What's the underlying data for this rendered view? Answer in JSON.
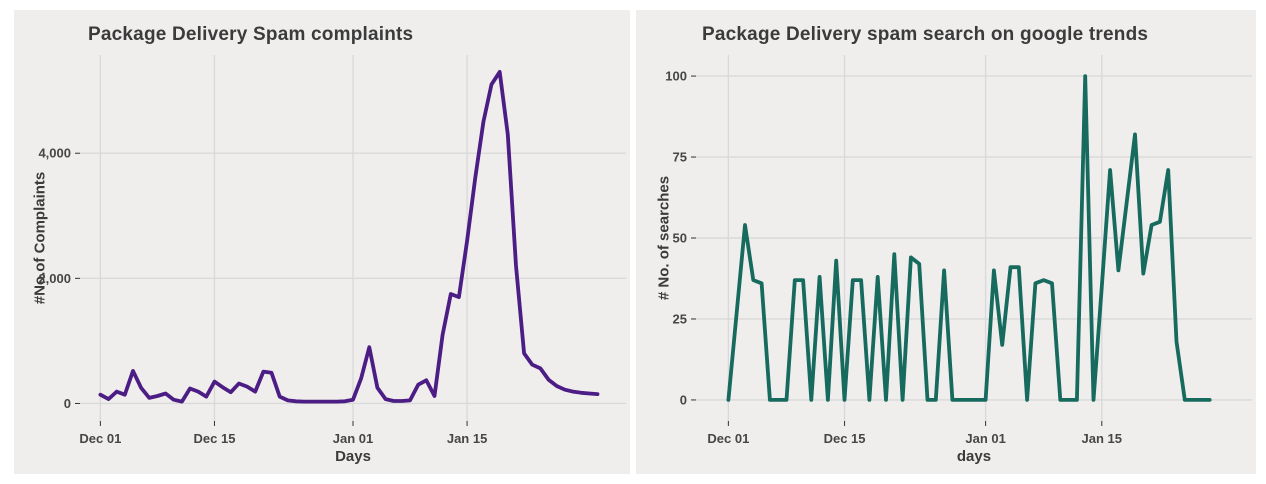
{
  "figure": {
    "background": "#ffffff",
    "panel_background": "#efeeed",
    "gridline_color": "#d9d9d9",
    "tick_color": "#333333",
    "tick_label_color": "#464646",
    "title_color": "#3b3b3b"
  },
  "chart_data": [
    {
      "type": "line",
      "title": "Package Delivery Spam complaints",
      "xlabel": "Days",
      "ylabel": "#No.of Complaints",
      "line_color": "#4c1d84",
      "grid": "major",
      "legend_position": "none",
      "x_tick_labels": [
        "Dec 01",
        "Dec 15",
        "Jan 01",
        "Jan 15"
      ],
      "x_tick_days": [
        0,
        14,
        31,
        45
      ],
      "y_tick_labels": [
        "0",
        "2,000",
        "4,000"
      ],
      "y_tick_values": [
        0,
        2000,
        4000
      ],
      "xlim": [
        -2.5,
        64.5
      ],
      "ylim": [
        -280,
        5570
      ],
      "x_dates": [
        "Dec 01",
        "Dec 02",
        "Dec 03",
        "Dec 04",
        "Dec 05",
        "Dec 06",
        "Dec 07",
        "Dec 08",
        "Dec 09",
        "Dec 10",
        "Dec 11",
        "Dec 12",
        "Dec 13",
        "Dec 14",
        "Dec 15",
        "Dec 16",
        "Dec 17",
        "Dec 18",
        "Dec 19",
        "Dec 20",
        "Dec 21",
        "Dec 22",
        "Dec 23",
        "Dec 24",
        "Dec 25",
        "Dec 26",
        "Dec 27",
        "Dec 28",
        "Dec 29",
        "Dec 30",
        "Dec 31",
        "Jan 01",
        "Jan 02",
        "Jan 03",
        "Jan 04",
        "Jan 05",
        "Jan 06",
        "Jan 07",
        "Jan 08",
        "Jan 09",
        "Jan 10",
        "Jan 11",
        "Jan 12",
        "Jan 13",
        "Jan 14",
        "Jan 15",
        "Jan 16",
        "Jan 17",
        "Jan 18",
        "Jan 19",
        "Jan 20",
        "Jan 21",
        "Jan 22",
        "Jan 23",
        "Jan 24",
        "Jan 25",
        "Jan 26",
        "Jan 27",
        "Jan 28",
        "Jan 29",
        "Jan 30",
        "Jan 31"
      ],
      "values": [
        140,
        70,
        190,
        140,
        520,
        250,
        90,
        120,
        160,
        60,
        30,
        240,
        190,
        110,
        350,
        260,
        180,
        320,
        270,
        190,
        510,
        490,
        110,
        50,
        35,
        30,
        30,
        30,
        30,
        30,
        35,
        60,
        400,
        900,
        250,
        70,
        40,
        40,
        50,
        300,
        370,
        120,
        1100,
        1750,
        1700,
        2600,
        3600,
        4500,
        5100,
        5300,
        4300,
        2200,
        800,
        620,
        560,
        380,
        280,
        220,
        190,
        170,
        160,
        150
      ]
    },
    {
      "type": "line",
      "title": "Package Delivery spam search on google trends",
      "xlabel": "days",
      "ylabel": "# No. of searches",
      "line_color": "#176a5e",
      "grid": "major",
      "legend_position": "none",
      "x_tick_labels": [
        "Dec 01",
        "Dec 15",
        "Jan 01",
        "Jan 15"
      ],
      "x_tick_days": [
        0,
        14,
        31,
        45
      ],
      "y_tick_labels": [
        "0",
        "25",
        "50",
        "75",
        "100"
      ],
      "y_tick_values": [
        0,
        25,
        50,
        75,
        100
      ],
      "xlim": [
        -3.9,
        63.1
      ],
      "ylim": [
        -6.5,
        106.5
      ],
      "x_dates": [
        "Dec 01",
        "Dec 02",
        "Dec 03",
        "Dec 04",
        "Dec 05",
        "Dec 06",
        "Dec 07",
        "Dec 08",
        "Dec 09",
        "Dec 10",
        "Dec 11",
        "Dec 12",
        "Dec 13",
        "Dec 14",
        "Dec 15",
        "Dec 16",
        "Dec 17",
        "Dec 18",
        "Dec 19",
        "Dec 20",
        "Dec 21",
        "Dec 22",
        "Dec 23",
        "Dec 24",
        "Dec 25",
        "Dec 26",
        "Dec 27",
        "Dec 28",
        "Dec 29",
        "Dec 30",
        "Dec 31",
        "Jan 01",
        "Jan 02",
        "Jan 03",
        "Jan 04",
        "Jan 05",
        "Jan 06",
        "Jan 07",
        "Jan 08",
        "Jan 09",
        "Jan 10",
        "Jan 11",
        "Jan 12",
        "Jan 13",
        "Jan 14",
        "Jan 15",
        "Jan 16",
        "Jan 17",
        "Jan 18",
        "Jan 19",
        "Jan 20",
        "Jan 21",
        "Jan 22",
        "Jan 23",
        "Jan 24",
        "Jan 25",
        "Jan 26",
        "Jan 27",
        "Jan 28"
      ],
      "values": [
        0,
        27,
        54,
        37,
        36,
        0,
        0,
        0,
        37,
        37,
        0,
        38,
        0,
        43,
        0,
        37,
        37,
        0,
        38,
        0,
        45,
        0,
        44,
        42,
        0,
        0,
        40,
        0,
        0,
        0,
        0,
        0,
        40,
        17,
        41,
        41,
        0,
        36,
        37,
        36,
        0,
        0,
        0,
        100,
        0,
        35,
        71,
        40,
        61,
        82,
        39,
        54,
        55,
        71,
        18,
        0,
        0,
        0,
        0
      ]
    }
  ]
}
